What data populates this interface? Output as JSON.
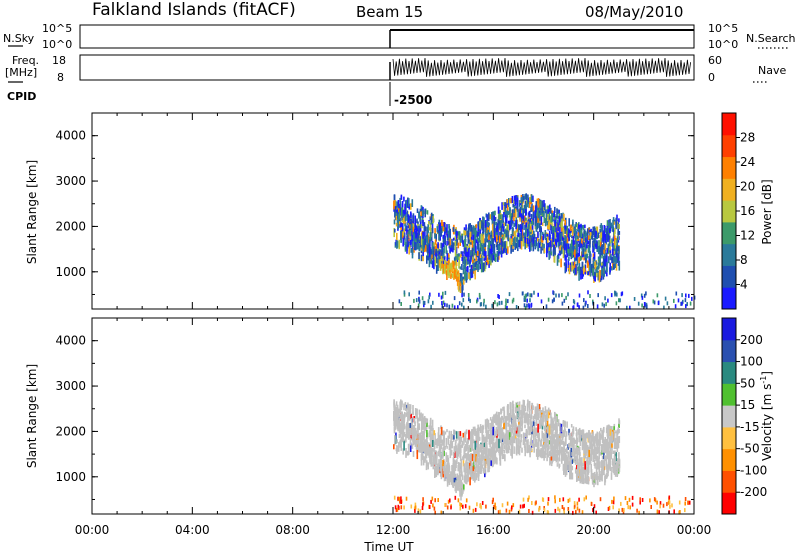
{
  "header": {
    "station": "Falkland Islands (fitACF)",
    "beam": "Beam 15",
    "date": "08/May/2010"
  },
  "side_labels": {
    "nsky": "N.Sky",
    "freq_line1": "Freq.",
    "freq_line2": "[MHz]",
    "cpid": "CPID",
    "nsearch": "N.Search",
    "nave": "Nave",
    "cpid_value": "-2500"
  },
  "top_ticks": {
    "nsky": [
      "10^5",
      "10^0"
    ],
    "nsearch": [
      "10^5",
      "10^0"
    ],
    "freq": [
      "18",
      "8"
    ],
    "nave": [
      "60",
      "0"
    ]
  },
  "colors": {
    "power_scale": [
      "#1a1aff",
      "#1f4fb0",
      "#2a7a9a",
      "#3c9a6a",
      "#b8c840",
      "#f0b020",
      "#ff8000",
      "#ff4000",
      "#ff1000"
    ],
    "velocity_scale": [
      "#ff0000",
      "#ff5000",
      "#ff9000",
      "#ffc040",
      "#c8c8c8",
      "#50c030",
      "#2a8a80",
      "#2a50b0",
      "#1a1ae0"
    ],
    "gray_scatter": "#c0c0c0"
  },
  "chart_data": [
    {
      "type": "heatmap",
      "title": "Beam 15",
      "ylabel": "Slant Range [km]",
      "yticks": [
        "1000",
        "2000",
        "3000",
        "4000"
      ],
      "ylim": [
        180,
        4500
      ],
      "xlim": [
        0,
        24
      ],
      "colorbar_label": "Power [dB]",
      "colorbar_ticks": [
        "28",
        "24",
        "20",
        "16",
        "12",
        "8",
        "4"
      ],
      "colorbar_range": [
        0,
        32
      ],
      "data_start_hour": 12.0,
      "data_end_hour": 21.0
    },
    {
      "type": "heatmap",
      "ylabel": "Slant Range [km]",
      "yticks": [
        "1000",
        "2000",
        "3000",
        "4000"
      ],
      "ylim": [
        180,
        4500
      ],
      "xlim": [
        0,
        24
      ],
      "xlabel": "Time UT",
      "xticks": [
        "00:00",
        "04:00",
        "08:00",
        "12:00",
        "16:00",
        "20:00",
        "00:00"
      ],
      "colorbar_label": "Velocity [m s",
      "colorbar_superscript": "-1",
      "colorbar_label_end": "]",
      "colorbar_ticks": [
        "200",
        "100",
        "50",
        "15",
        "-15",
        "-50",
        "-100",
        "-200"
      ],
      "data_start_hour": 12.0,
      "data_end_hour": 21.0
    }
  ]
}
